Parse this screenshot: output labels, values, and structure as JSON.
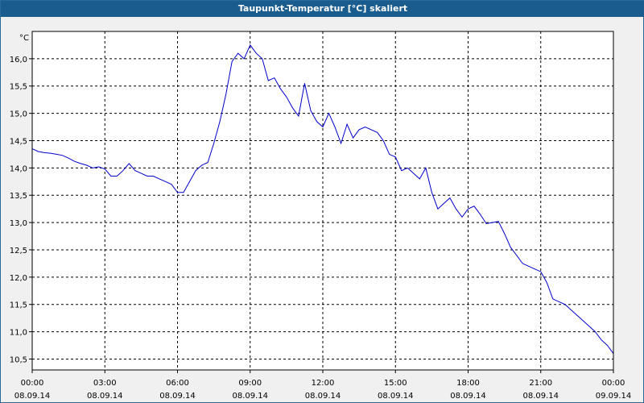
{
  "window": {
    "title": "Taupunkt-Temperatur [°C] skaliert"
  },
  "chart_data": {
    "type": "line",
    "title": "Taupunkt-Temperatur [°C] skaliert",
    "ylabel": "°C",
    "xlabel": "",
    "grid": true,
    "xlim": [
      0,
      24
    ],
    "ylim": [
      10.3,
      16.5
    ],
    "y_ticks": [
      "16,0",
      "15,5",
      "15,0",
      "14,5",
      "14,0",
      "13,5",
      "13,0",
      "12,5",
      "12,0",
      "11,5",
      "11,0",
      "10,5"
    ],
    "y_tick_values": [
      16.0,
      15.5,
      15.0,
      14.5,
      14.0,
      13.5,
      13.0,
      12.5,
      12.0,
      11.5,
      11.0,
      10.5
    ],
    "x_ticks": [
      {
        "time": "00:00",
        "date": "08.09.14"
      },
      {
        "time": "03:00",
        "date": "08.09.14"
      },
      {
        "time": "06:00",
        "date": "08.09.14"
      },
      {
        "time": "09:00",
        "date": "08.09.14"
      },
      {
        "time": "12:00",
        "date": "08.09.14"
      },
      {
        "time": "15:00",
        "date": "08.09.14"
      },
      {
        "time": "18:00",
        "date": "08.09.14"
      },
      {
        "time": "21:00",
        "date": "08.09.14"
      },
      {
        "time": "00:00",
        "date": "09.09.14"
      }
    ],
    "series": [
      {
        "color": "#0000cc",
        "x": [
          0.0,
          0.25,
          0.5,
          0.75,
          1.0,
          1.25,
          1.5,
          1.75,
          2.0,
          2.25,
          2.5,
          2.75,
          3.0,
          3.25,
          3.5,
          3.75,
          4.0,
          4.25,
          4.5,
          4.75,
          5.0,
          5.25,
          5.5,
          5.75,
          6.0,
          6.25,
          6.5,
          6.75,
          7.0,
          7.25,
          7.5,
          7.75,
          8.0,
          8.25,
          8.5,
          8.75,
          9.0,
          9.25,
          9.5,
          9.75,
          10.0,
          10.25,
          10.5,
          10.75,
          11.0,
          11.25,
          11.5,
          11.75,
          12.0,
          12.25,
          12.5,
          12.75,
          13.0,
          13.25,
          13.5,
          13.75,
          14.0,
          14.25,
          14.5,
          14.75,
          15.0,
          15.25,
          15.5,
          15.75,
          16.0,
          16.25,
          16.5,
          16.75,
          17.0,
          17.25,
          17.5,
          17.75,
          18.0,
          18.25,
          18.5,
          18.75,
          19.0,
          19.25,
          19.5,
          19.75,
          20.0,
          20.25,
          20.5,
          20.75,
          21.0,
          21.25,
          21.5,
          21.75,
          22.0,
          22.25,
          22.5,
          22.75,
          23.0,
          23.25,
          23.5,
          23.75,
          24.0
        ],
        "values": [
          14.35,
          14.3,
          14.28,
          14.27,
          14.25,
          14.23,
          14.18,
          14.12,
          14.08,
          14.05,
          14.0,
          14.02,
          13.98,
          13.85,
          13.85,
          13.95,
          14.08,
          13.95,
          13.9,
          13.85,
          13.85,
          13.8,
          13.75,
          13.7,
          13.55,
          13.55,
          13.75,
          13.95,
          14.05,
          14.1,
          14.45,
          14.85,
          15.35,
          15.95,
          16.1,
          16.0,
          16.25,
          16.1,
          16.0,
          15.6,
          15.65,
          15.45,
          15.3,
          15.1,
          14.95,
          15.55,
          15.05,
          14.85,
          14.75,
          15.0,
          14.75,
          14.45,
          14.8,
          14.55,
          14.7,
          14.75,
          14.7,
          14.65,
          14.5,
          14.25,
          14.2,
          13.95,
          14.0,
          13.9,
          13.8,
          14.0,
          13.55,
          13.25,
          13.35,
          13.45,
          13.25,
          13.1,
          13.25,
          13.3,
          13.15,
          12.98,
          13.0,
          13.02,
          12.8,
          12.55,
          12.4,
          12.25,
          12.2,
          12.15,
          12.1,
          11.9,
          11.6,
          11.55,
          11.5,
          11.4,
          11.3,
          11.2,
          11.1,
          11.0,
          10.85,
          10.75,
          10.6
        ]
      }
    ]
  }
}
